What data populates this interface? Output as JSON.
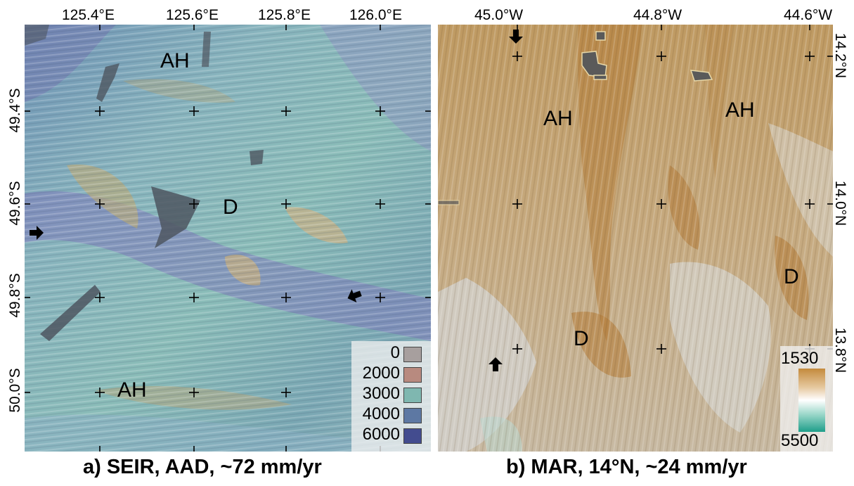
{
  "panel_a": {
    "caption": "a) SEIR, AAD, ~72 mm/yr",
    "lon_ticks": [
      "125.4°E",
      "125.6°E",
      "125.8°E",
      "126.0°E"
    ],
    "lat_ticks": [
      "49.4°S",
      "49.6°S",
      "49.8°S",
      "50.0°S"
    ],
    "labels": [
      "AH",
      "D",
      "AH"
    ],
    "legend": [
      {
        "value": "0",
        "color": "#a79f9e"
      },
      {
        "value": "2000",
        "color": "#b88a7f"
      },
      {
        "value": "3000",
        "color": "#7fb7b0"
      },
      {
        "value": "4000",
        "color": "#5d78a3"
      },
      {
        "value": "6000",
        "color": "#434c8f"
      }
    ],
    "colors": {
      "base": "#7ea9b6",
      "deep": "#7a78b8",
      "ridge": "#b0a98a",
      "data_gap": "#4e5660"
    }
  },
  "panel_b": {
    "caption": "b) MAR, 14°N, ~24 mm/yr",
    "lon_ticks": [
      "45.0°W",
      "44.8°W",
      "44.6°W"
    ],
    "lat_ticks": [
      "14.2°N",
      "14.0°N",
      "13.8°N"
    ],
    "labels": [
      "AH",
      "AH",
      "D",
      "D"
    ],
    "legend": {
      "top": "1530",
      "bottom": "5500",
      "colors": [
        "#c48a3c",
        "#ffffff",
        "#1f9e8a"
      ]
    },
    "colors": {
      "base": "#c6aa80",
      "shallow": "#b98a4c",
      "deep": "#cfcfcf",
      "data_gap": "#5a5a5a"
    }
  },
  "icons": [
    "arrow-icon"
  ]
}
